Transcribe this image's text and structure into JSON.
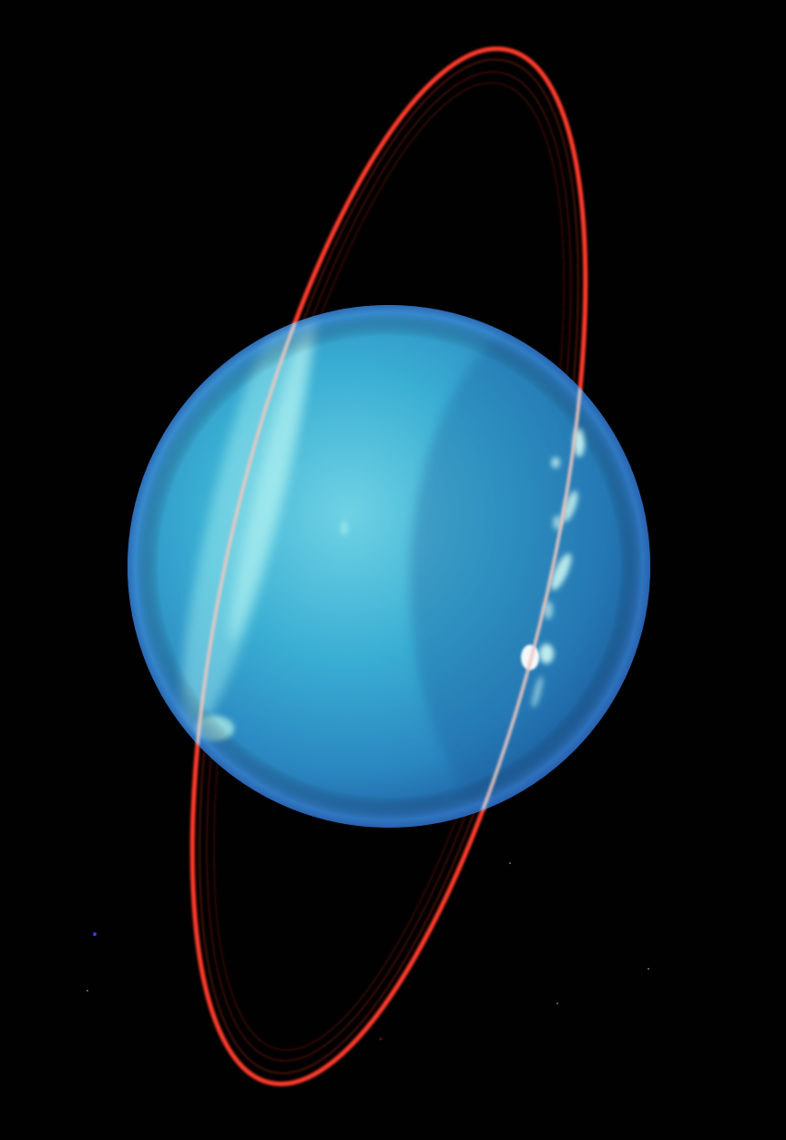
{
  "image": {
    "subject": "planet-with-rings",
    "colors": {
      "space": "#010101",
      "planet_light": "#7fe0ea",
      "planet_mid": "#2e9cc8",
      "planet_dark": "#1a5d9a",
      "ring": "#ff3b2a",
      "ring_faint": "#8a1a14",
      "cloud": "#d8fff6"
    }
  }
}
